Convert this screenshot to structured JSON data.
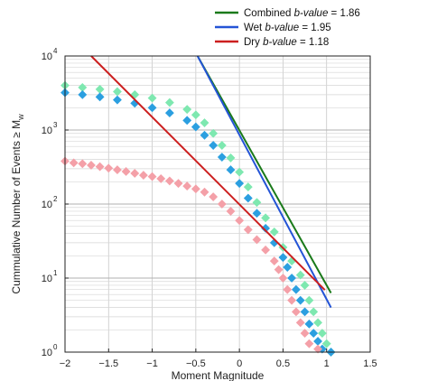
{
  "chart_data": {
    "type": "scatter",
    "title": "",
    "xlabel": "Moment Magnitude",
    "ylabel_prefix": "Cummulative Number of Events ≥ M",
    "ylabel_sub": "w",
    "xlim": [
      -2,
      1.5
    ],
    "ylim": [
      1,
      10000
    ],
    "y_scale": "log",
    "grid": true,
    "legend_position": "top-right (outside axes)",
    "x_ticks": [
      "−2",
      "−1.5",
      "−1",
      "−0.5",
      "0",
      "0.5",
      "1",
      "1.5"
    ],
    "y_ticks": [
      {
        "base": "10",
        "exp": "0"
      },
      {
        "base": "10",
        "exp": "1"
      },
      {
        "base": "10",
        "exp": "2"
      },
      {
        "base": "10",
        "exp": "3"
      },
      {
        "base": "10",
        "exp": "4"
      }
    ],
    "legend": [
      {
        "prefix": "Combined ",
        "italic": "b-value",
        "suffix": " = 1.86",
        "color": "#1a7a1a"
      },
      {
        "prefix": "Wet ",
        "italic": "b-value",
        "suffix": " = 1.95",
        "color": "#2454d6"
      },
      {
        "prefix": "Dry ",
        "italic": "b-value",
        "suffix": " = 1.18",
        "color": "#cc1f1f"
      }
    ],
    "series": [
      {
        "kind": "points",
        "color": "#7ee8b0",
        "points": [
          [
            -2.0,
            4000
          ],
          [
            -1.8,
            3750
          ],
          [
            -1.6,
            3550
          ],
          [
            -1.4,
            3300
          ],
          [
            -1.2,
            3000
          ],
          [
            -1.0,
            2700
          ],
          [
            -0.8,
            2350
          ],
          [
            -0.6,
            1900
          ],
          [
            -0.5,
            1600
          ],
          [
            -0.4,
            1250
          ],
          [
            -0.3,
            900
          ],
          [
            -0.2,
            620
          ],
          [
            -0.1,
            420
          ],
          [
            0.0,
            270
          ],
          [
            0.1,
            170
          ],
          [
            0.2,
            105
          ],
          [
            0.3,
            65
          ],
          [
            0.4,
            42
          ],
          [
            0.5,
            26
          ],
          [
            0.6,
            17
          ],
          [
            0.7,
            11
          ],
          [
            0.75,
            8
          ],
          [
            0.8,
            5
          ],
          [
            0.85,
            3.5
          ],
          [
            0.9,
            2.5
          ],
          [
            0.95,
            1.8
          ],
          [
            1.0,
            1.3
          ],
          [
            1.05,
            1.0
          ]
        ]
      },
      {
        "kind": "points",
        "color": "#2b9fe0",
        "points": [
          [
            -2.0,
            3200
          ],
          [
            -1.8,
            3000
          ],
          [
            -1.6,
            2800
          ],
          [
            -1.4,
            2550
          ],
          [
            -1.2,
            2300
          ],
          [
            -1.0,
            2000
          ],
          [
            -0.8,
            1700
          ],
          [
            -0.6,
            1350
          ],
          [
            -0.5,
            1100
          ],
          [
            -0.4,
            850
          ],
          [
            -0.3,
            620
          ],
          [
            -0.2,
            430
          ],
          [
            -0.1,
            290
          ],
          [
            0.0,
            190
          ],
          [
            0.1,
            120
          ],
          [
            0.2,
            75
          ],
          [
            0.3,
            47
          ],
          [
            0.4,
            30
          ],
          [
            0.5,
            19
          ],
          [
            0.55,
            14
          ],
          [
            0.6,
            10
          ],
          [
            0.65,
            7
          ],
          [
            0.7,
            5
          ],
          [
            0.75,
            3.5
          ],
          [
            0.8,
            2.4
          ],
          [
            0.85,
            1.8
          ],
          [
            0.9,
            1.4
          ],
          [
            0.95,
            1.1
          ],
          [
            1.05,
            1.0
          ]
        ]
      },
      {
        "kind": "points",
        "color": "#f4a0a8",
        "points": [
          [
            -2.0,
            380
          ],
          [
            -1.9,
            360
          ],
          [
            -1.8,
            350
          ],
          [
            -1.7,
            335
          ],
          [
            -1.6,
            320
          ],
          [
            -1.5,
            305
          ],
          [
            -1.4,
            290
          ],
          [
            -1.3,
            275
          ],
          [
            -1.2,
            260
          ],
          [
            -1.1,
            245
          ],
          [
            -1.0,
            235
          ],
          [
            -0.9,
            220
          ],
          [
            -0.8,
            205
          ],
          [
            -0.7,
            190
          ],
          [
            -0.6,
            175
          ],
          [
            -0.5,
            160
          ],
          [
            -0.4,
            145
          ],
          [
            -0.3,
            125
          ],
          [
            -0.2,
            100
          ],
          [
            -0.1,
            80
          ],
          [
            0.0,
            60
          ],
          [
            0.1,
            45
          ],
          [
            0.2,
            33
          ],
          [
            0.3,
            24
          ],
          [
            0.4,
            17
          ],
          [
            0.45,
            13
          ],
          [
            0.5,
            10
          ],
          [
            0.55,
            7
          ],
          [
            0.6,
            5
          ],
          [
            0.65,
            3.5
          ],
          [
            0.7,
            2.5
          ],
          [
            0.75,
            1.8
          ],
          [
            0.8,
            1.3
          ],
          [
            0.9,
            1.1
          ]
        ]
      },
      {
        "kind": "line",
        "name": "Combined b-value = 1.86",
        "color": "#1a7a1a",
        "points": [
          [
            -0.48,
            10000
          ],
          [
            1.05,
            6.3
          ]
        ]
      },
      {
        "kind": "line",
        "name": "Wet b-value = 1.95",
        "color": "#2454d6",
        "points": [
          [
            -0.48,
            10000
          ],
          [
            1.05,
            4.0
          ]
        ]
      },
      {
        "kind": "line",
        "name": "Dry b-value = 1.18",
        "color": "#cc1f1f",
        "points": [
          [
            -1.7,
            10000
          ],
          [
            0.98,
            6.9
          ]
        ]
      }
    ]
  }
}
